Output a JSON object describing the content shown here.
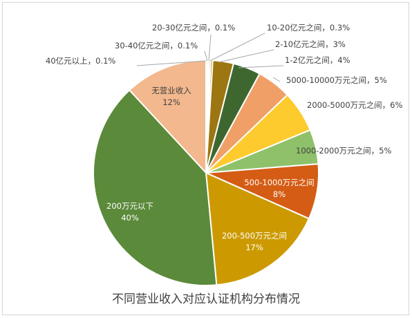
{
  "chart_data": {
    "type": "pie",
    "title": "不同营业收入对应认证机构分布情况",
    "unit": "%",
    "slices": [
      {
        "label": "40亿元以上",
        "value": 0.1,
        "value_text": "0.1%",
        "color": "#f5f5f5"
      },
      {
        "label": "30-40亿元之间",
        "value": 0.1,
        "value_text": "0.1%",
        "color": "#c8c8c8"
      },
      {
        "label": "20-30亿元之间",
        "value": 0.1,
        "value_text": "0.1%",
        "color": "#8a6d1e"
      },
      {
        "label": "10-20亿元之间",
        "value": 0.3,
        "value_text": "0.3%",
        "color": "#b8860b"
      },
      {
        "label": "2-10亿元之间",
        "value": 3,
        "value_text": "3%",
        "color": "#9c7610"
      },
      {
        "label": "1-2亿元之间",
        "value": 4,
        "value_text": "4%",
        "color": "#3e6730"
      },
      {
        "label": "5000-10000万元之间",
        "value": 5,
        "value_text": "5%",
        "color": "#f0a066"
      },
      {
        "label": "2000-5000万元之间",
        "value": 6,
        "value_text": "6%",
        "color": "#fecb2e"
      },
      {
        "label": "1000-2000万元之间",
        "value": 5,
        "value_text": "5%",
        "color": "#8ec16a"
      },
      {
        "label": "500-1000万元之间",
        "value": 8,
        "value_text": "8%",
        "color": "#d55c14"
      },
      {
        "label": "200-500万元之间",
        "value": 17,
        "value_text": "17%",
        "color": "#cc9a00"
      },
      {
        "label": "200万元以下",
        "value": 40,
        "value_text": "40%",
        "color": "#5b8a3a"
      },
      {
        "label": "无营业收入",
        "value": 12,
        "value_text": "12%",
        "color": "#f3b88e"
      }
    ]
  }
}
